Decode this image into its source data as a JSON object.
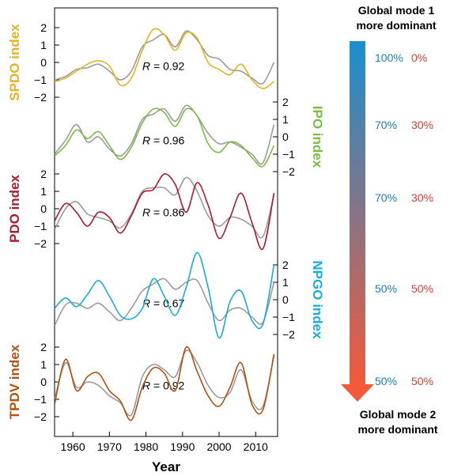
{
  "chart_data": {
    "type": "line",
    "xlabel": "Year",
    "xlim": [
      1955,
      2016
    ],
    "x_ticks": [
      "1960",
      "1970",
      "1980",
      "1990",
      "2000",
      "2010"
    ],
    "x_tick_values": [
      1960,
      1970,
      1980,
      1990,
      2000,
      2010
    ],
    "panels": [
      {
        "ylabel": "SPDO index",
        "axis_side": "left",
        "color": "#e8b21e",
        "ylim": [
          -2.5,
          2.5
        ],
        "y_ticks": [
          "2",
          "1",
          "0",
          "−1",
          "−2"
        ],
        "y_tick_values": [
          2,
          1,
          0,
          -1,
          -2
        ],
        "r_label": "R = 0.92",
        "x": [
          1955,
          1958,
          1961,
          1964,
          1967,
          1970,
          1973,
          1976,
          1979,
          1982,
          1985,
          1988,
          1991,
          1994,
          1997,
          2000,
          2003,
          2006,
          2009,
          2012,
          2015
        ],
        "series": [
          {
            "name": "SPDO index",
            "values": [
              -1.1,
              -0.9,
              -0.5,
              -0.1,
              0.1,
              -0.2,
              -1.3,
              -0.9,
              0.7,
              1.9,
              1.6,
              0.7,
              1.7,
              1.4,
              0.0,
              -0.4,
              -0.7,
              -0.1,
              -1.0,
              -1.5,
              -1.1
            ]
          },
          {
            "name": "Global mode",
            "values": [
              -1.0,
              -0.8,
              -0.4,
              -0.3,
              -0.1,
              -0.5,
              -1.0,
              -0.5,
              0.9,
              1.3,
              1.6,
              0.9,
              1.8,
              1.3,
              0.4,
              0.2,
              -0.4,
              -0.5,
              -0.9,
              -1.2,
              0.0
            ]
          }
        ]
      },
      {
        "ylabel": "IPO index",
        "axis_side": "right",
        "color": "#7bbd42",
        "ylim": [
          -2.5,
          2.5
        ],
        "y_ticks": [
          "2",
          "1",
          "0",
          "−1",
          "−2"
        ],
        "y_tick_values": [
          2,
          1,
          0,
          -1,
          -2
        ],
        "r_label": "R = 0.96",
        "x": [
          1955,
          1958,
          1961,
          1964,
          1967,
          1970,
          1973,
          1976,
          1979,
          1982,
          1985,
          1988,
          1991,
          1994,
          1997,
          2000,
          2003,
          2006,
          2009,
          2012,
          2015
        ],
        "series": [
          {
            "name": "IPO index",
            "values": [
              -1.1,
              -0.5,
              0.4,
              -0.1,
              0.3,
              -0.5,
              -1.3,
              -0.6,
              0.8,
              1.6,
              1.4,
              0.6,
              1.6,
              1.2,
              -0.4,
              -0.9,
              -0.3,
              -0.5,
              -1.2,
              -1.7,
              -0.5
            ]
          },
          {
            "name": "Global mode",
            "values": [
              -1.0,
              -0.2,
              0.7,
              -0.3,
              0.0,
              -0.7,
              -1.1,
              -0.4,
              1.0,
              1.3,
              1.6,
              0.9,
              1.8,
              1.2,
              0.2,
              -0.4,
              -0.3,
              -0.6,
              -1.0,
              -1.5,
              0.7
            ]
          }
        ]
      },
      {
        "ylabel": "PDO index",
        "axis_side": "left",
        "color": "#b01a2e",
        "ylim": [
          -2.5,
          2.5
        ],
        "y_ticks": [
          "2",
          "1",
          "0",
          "−1",
          "−2"
        ],
        "y_tick_values": [
          2,
          1,
          0,
          -1,
          -2
        ],
        "r_label": "R = 0.86",
        "x": [
          1955,
          1958,
          1961,
          1964,
          1967,
          1970,
          1973,
          1976,
          1979,
          1982,
          1985,
          1988,
          1991,
          1994,
          1997,
          2000,
          2003,
          2006,
          2009,
          2012,
          2015
        ],
        "series": [
          {
            "name": "PDO index",
            "values": [
              -0.7,
              0.3,
              -0.2,
              -1.0,
              -0.2,
              -0.5,
              -1.4,
              -0.4,
              0.9,
              1.1,
              2.0,
              1.4,
              -0.2,
              1.5,
              0.2,
              -1.7,
              -0.5,
              0.9,
              -0.8,
              -2.3,
              0.9
            ]
          },
          {
            "name": "Global mode",
            "values": [
              -1.2,
              0.0,
              0.4,
              -0.3,
              -0.5,
              -0.7,
              -1.1,
              -0.3,
              1.0,
              1.2,
              1.2,
              0.8,
              1.8,
              1.0,
              -0.4,
              -1.0,
              -0.5,
              -0.6,
              -1.0,
              -1.6,
              0.8
            ]
          }
        ]
      },
      {
        "ylabel": "NPGO index",
        "axis_side": "right",
        "color": "#1aabe0",
        "ylim": [
          -2.5,
          2.5
        ],
        "y_ticks": [
          "2",
          "1",
          "0",
          "−1",
          "−2"
        ],
        "y_tick_values": [
          2,
          1,
          0,
          -1,
          -2
        ],
        "r_label": "R = 0.67",
        "x": [
          1955,
          1958,
          1961,
          1964,
          1967,
          1970,
          1973,
          1976,
          1979,
          1982,
          1985,
          1988,
          1991,
          1994,
          1997,
          2000,
          2003,
          2006,
          2009,
          2012,
          2015
        ],
        "series": [
          {
            "name": "NPGO index",
            "values": [
              -0.5,
              0.1,
              -0.4,
              0.3,
              1.1,
              0.2,
              -0.9,
              -1.1,
              -0.5,
              1.2,
              0.2,
              -0.9,
              0.7,
              2.7,
              0.7,
              -2.2,
              -0.1,
              0.5,
              -1.2,
              -1.4,
              2.0
            ]
          },
          {
            "name": "Global mode",
            "values": [
              -1.5,
              -0.3,
              -0.2,
              -0.5,
              -0.2,
              -0.7,
              -1.2,
              -0.5,
              0.5,
              0.9,
              1.2,
              0.6,
              1.0,
              1.1,
              -0.2,
              -1.2,
              -0.6,
              -0.5,
              -1.0,
              -1.3,
              1.0
            ]
          }
        ]
      },
      {
        "ylabel": "TPDV index",
        "axis_side": "left",
        "color": "#b6500f",
        "ylim": [
          -2.5,
          2.5
        ],
        "y_ticks": [
          "2",
          "1",
          "0",
          "−1",
          "−2"
        ],
        "y_tick_values": [
          2,
          1,
          0,
          -1,
          -2
        ],
        "r_label": "R = 0.92",
        "x": [
          1955,
          1958,
          1961,
          1964,
          1967,
          1970,
          1973,
          1976,
          1979,
          1982,
          1985,
          1988,
          1991,
          1994,
          1997,
          2000,
          2003,
          2006,
          2009,
          2012,
          2015
        ],
        "series": [
          {
            "name": "TPDV index",
            "values": [
              -1.3,
              1.3,
              -0.5,
              0.3,
              0.5,
              -0.5,
              -1.1,
              -2.2,
              -0.3,
              0.8,
              0.5,
              -0.5,
              2.0,
              0.6,
              -0.8,
              -1.4,
              -0.3,
              1.1,
              -1.3,
              -1.6,
              1.6
            ]
          },
          {
            "name": "Global mode",
            "values": [
              -1.0,
              1.1,
              -0.3,
              0.0,
              -0.2,
              -0.8,
              -1.2,
              -1.9,
              0.3,
              1.0,
              0.7,
              0.3,
              1.8,
              1.1,
              -0.2,
              -0.9,
              -0.6,
              0.7,
              -1.1,
              -1.4,
              1.5
            ]
          }
        ]
      }
    ]
  },
  "legend_arrow": {
    "top_label": [
      "Global mode 1",
      "more dominant"
    ],
    "bottom_label": [
      "Global mode 2",
      "more dominant"
    ],
    "top_color": "#1f8fce",
    "bottom_color": "#ee4b33",
    "mode1_color": "#1a7fc0",
    "mode2_color": "#e03c32",
    "rows": [
      {
        "mode1": "100%",
        "mode2": "0%"
      },
      {
        "mode1": "70%",
        "mode2": "30%"
      },
      {
        "mode1": "70%",
        "mode2": "30%"
      },
      {
        "mode1": "50%",
        "mode2": "50%"
      },
      {
        "mode1": "50%",
        "mode2": "50%"
      }
    ]
  }
}
